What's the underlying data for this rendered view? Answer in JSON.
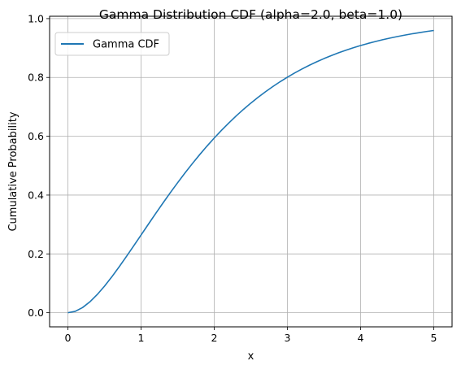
{
  "chart_data": {
    "type": "line",
    "title": "Gamma Distribution CDF (alpha=2.0, beta=1.0)",
    "xlabel": "x",
    "ylabel": "Cumulative Probability",
    "xlim": [
      -0.25,
      5.25
    ],
    "ylim": [
      -0.048,
      1.008
    ],
    "xticks": [
      0,
      1,
      2,
      3,
      4,
      5
    ],
    "xtick_labels": [
      "0",
      "1",
      "2",
      "3",
      "4",
      "5"
    ],
    "yticks": [
      0.0,
      0.2,
      0.4,
      0.6,
      0.8,
      1.0
    ],
    "ytick_labels": [
      "0.0",
      "0.2",
      "0.4",
      "0.6",
      "0.8",
      "1.0"
    ],
    "grid": true,
    "legend": {
      "placement": "upper-left",
      "entries": [
        "Gamma CDF"
      ]
    },
    "series": [
      {
        "name": "Gamma CDF",
        "color": "#1f77b4",
        "x": [
          0.0,
          0.1,
          0.2,
          0.3,
          0.4,
          0.5,
          0.6,
          0.7,
          0.8,
          0.9,
          1.0,
          1.1,
          1.2,
          1.3,
          1.4,
          1.5,
          1.6,
          1.7,
          1.8,
          1.9,
          2.0,
          2.1,
          2.2,
          2.3,
          2.4,
          2.5,
          2.6,
          2.7,
          2.8,
          2.9,
          3.0,
          3.1,
          3.2,
          3.3,
          3.4,
          3.5,
          3.6,
          3.7,
          3.8,
          3.9,
          4.0,
          4.1,
          4.2,
          4.3,
          4.4,
          4.5,
          4.6,
          4.7,
          4.8,
          4.9,
          5.0
        ],
        "y": [
          0.0,
          0.0047,
          0.0175,
          0.0369,
          0.0616,
          0.0902,
          0.1219,
          0.1558,
          0.1912,
          0.2275,
          0.2642,
          0.301,
          0.3374,
          0.3732,
          0.4082,
          0.4422,
          0.4751,
          0.5068,
          0.5372,
          0.5663,
          0.594,
          0.6204,
          0.6454,
          0.6691,
          0.6916,
          0.7127,
          0.7326,
          0.7513,
          0.7689,
          0.7854,
          0.8009,
          0.8153,
          0.8288,
          0.8414,
          0.8532,
          0.8641,
          0.8743,
          0.8838,
          0.8926,
          0.9008,
          0.9084,
          0.9155,
          0.922,
          0.9281,
          0.9337,
          0.9389,
          0.9437,
          0.9482,
          0.9523,
          0.9561,
          0.9596
        ]
      }
    ]
  }
}
